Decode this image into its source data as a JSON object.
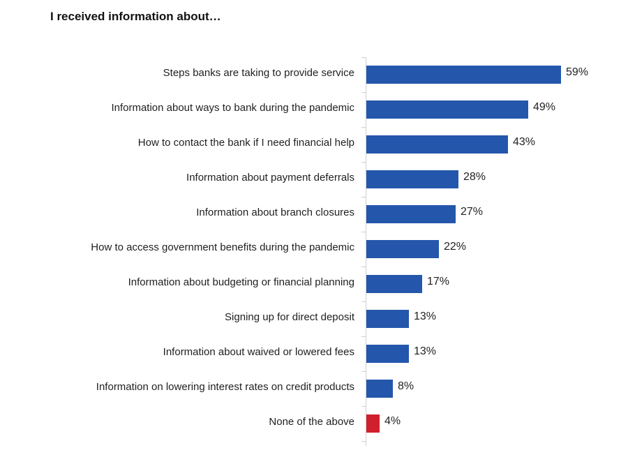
{
  "chart_data": {
    "type": "bar",
    "orientation": "horizontal",
    "title": "I received information about…",
    "xlabel": "",
    "ylabel": "",
    "xlim": [
      0,
      60
    ],
    "grid": false,
    "categories": [
      "Steps banks are taking to provide service",
      "Information about ways to bank during the pandemic",
      "How to contact the bank if I need financial help",
      "Information about payment deferrals",
      "Information about branch closures",
      "How to access government benefits during the pandemic",
      "Information about budgeting or financial planning",
      "Signing up for direct deposit",
      "Information about waived or lowered fees",
      "Information on lowering interest rates on credit products",
      "None of the above"
    ],
    "values": [
      59,
      49,
      43,
      28,
      27,
      22,
      17,
      13,
      13,
      8,
      4
    ],
    "value_labels": [
      "59%",
      "49%",
      "43%",
      "28%",
      "27%",
      "22%",
      "17%",
      "13%",
      "13%",
      "8%",
      "4%"
    ],
    "colors": [
      "#2457AB",
      "#2457AB",
      "#2457AB",
      "#2457AB",
      "#2457AB",
      "#2457AB",
      "#2457AB",
      "#2457AB",
      "#2457AB",
      "#2457AB",
      "#D0202E"
    ]
  }
}
